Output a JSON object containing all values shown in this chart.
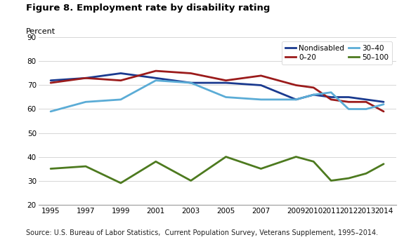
{
  "title": "Figure 8. Employment rate by disability rating",
  "ylabel": "Percent",
  "source": "Source: U.S. Bureau of Labor Statistics,  Current Population Survey, Veterans Supplement, 1995–2014.",
  "ylim": [
    20,
    90
  ],
  "yticks": [
    20,
    30,
    40,
    50,
    60,
    70,
    80,
    90
  ],
  "years": [
    1995,
    1997,
    1999,
    2001,
    2003,
    2005,
    2007,
    2009,
    2010,
    2011,
    2012,
    2013,
    2014
  ],
  "series": {
    "Nondisabled": {
      "color": "#1a3a8f",
      "linewidth": 2.0,
      "values": [
        72,
        73,
        75,
        73,
        71,
        71,
        70,
        64,
        66,
        65,
        65,
        64,
        63
      ]
    },
    "0–20": {
      "color": "#9b1b1b",
      "linewidth": 2.0,
      "values": [
        71,
        73,
        72,
        76,
        75,
        72,
        74,
        70,
        69,
        64,
        63,
        63,
        59
      ]
    },
    "30–40": {
      "color": "#5bacd6",
      "linewidth": 2.0,
      "values": [
        59,
        63,
        64,
        72,
        71,
        65,
        64,
        64,
        66,
        67,
        60,
        60,
        62
      ]
    },
    "50–100": {
      "color": "#4d7a1f",
      "linewidth": 2.0,
      "values": [
        35,
        36,
        29,
        38,
        30,
        40,
        35,
        40,
        38,
        30,
        31,
        33,
        37
      ]
    }
  },
  "legend_order": [
    "Nondisabled",
    "0–20",
    "30–40",
    "50–100"
  ],
  "legend_ncol": 2,
  "xtick_labels": [
    "1995",
    "1997",
    "1999",
    "2001",
    "2003",
    "2005",
    "2007",
    "2009",
    "2010",
    "2011",
    "2012",
    "2013",
    "2014"
  ],
  "bg_color": "#ffffff",
  "plot_bg_color": "#ffffff",
  "xlim_left": 1994.3,
  "xlim_right": 2014.7
}
